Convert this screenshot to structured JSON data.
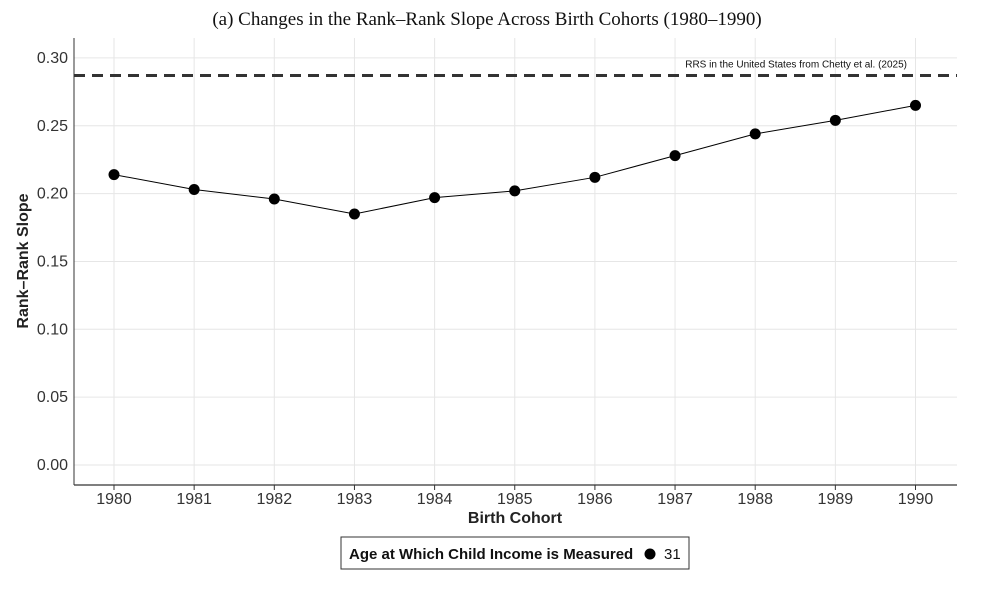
{
  "chart_data": {
    "type": "line",
    "title": "(a) Changes in the Rank–Rank Slope Across Birth Cohorts (1980–1990)",
    "xlabel": "Birth Cohort",
    "ylabel": "Rank–Rank Slope",
    "x": [
      1980,
      1981,
      1982,
      1983,
      1984,
      1985,
      1986,
      1987,
      1988,
      1989,
      1990
    ],
    "x_tick_labels": [
      "1980",
      "1981",
      "1982",
      "1983",
      "1984",
      "1985",
      "1986",
      "1987",
      "1988",
      "1989",
      "1990"
    ],
    "series": [
      {
        "name": "31",
        "values": [
          0.214,
          0.203,
          0.196,
          0.185,
          0.197,
          0.202,
          0.212,
          0.228,
          0.244,
          0.254,
          0.265
        ],
        "color": "#000000",
        "marker": "circle"
      }
    ],
    "ylim": [
      -0.015,
      0.315
    ],
    "y_ticks": [
      0.0,
      0.05,
      0.1,
      0.15,
      0.2,
      0.25,
      0.3
    ],
    "y_tick_labels": [
      "0.00",
      "0.05",
      "0.10",
      "0.15",
      "0.20",
      "0.25",
      "0.30"
    ],
    "reference_line": {
      "value": 0.287,
      "label": "RRS in the United States from Chetty et al. (2025)",
      "style": "dashed",
      "color": "#333333"
    },
    "legend": {
      "title": "Age at Which Child Income is Measured",
      "placement": "bottom-center",
      "entries": [
        "31"
      ]
    },
    "grid": true
  }
}
